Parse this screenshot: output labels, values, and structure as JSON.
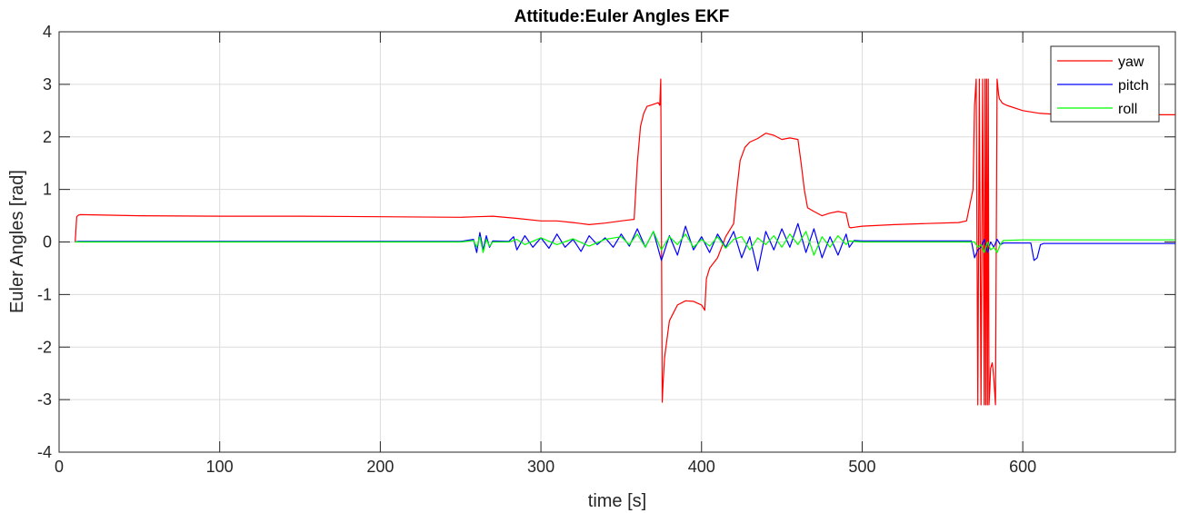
{
  "chart_data": {
    "type": "line",
    "title": "Attitude:Euler Angles EKF",
    "xlabel": "time [s]",
    "ylabel": "Euler Angles [rad]",
    "xlim": [
      0,
      695
    ],
    "ylim": [
      -4,
      4
    ],
    "xticks": [
      0,
      100,
      200,
      300,
      400,
      500,
      600
    ],
    "yticks": [
      -4,
      -3,
      -2,
      -1,
      0,
      1,
      2,
      3,
      4
    ],
    "grid": true,
    "legend_position": "top-right",
    "series": [
      {
        "name": "yaw",
        "color": "#ff0000",
        "x": [
          10,
          11,
          12,
          13,
          50,
          100,
          150,
          200,
          250,
          260,
          270,
          285,
          300,
          310,
          320,
          330,
          340,
          350,
          355,
          358,
          360,
          362,
          364,
          366,
          370,
          373,
          374,
          374.6,
          375,
          375.5,
          376,
          377,
          380,
          385,
          390,
          395,
          400,
          401,
          402,
          403,
          405,
          410,
          415,
          420,
          422,
          424,
          427,
          430,
          435,
          440,
          445,
          450,
          455,
          460,
          462,
          464,
          466,
          470,
          475,
          480,
          485,
          490,
          491,
          492,
          493,
          495,
          500,
          520,
          540,
          560,
          565,
          569,
          570,
          571,
          572,
          573,
          574,
          575,
          576,
          576.5,
          577,
          577.5,
          578,
          578.5,
          579,
          579.5,
          580,
          581,
          582,
          583,
          584,
          585,
          585.5,
          586,
          586.5,
          587,
          588,
          590,
          600,
          610,
          620,
          640,
          650,
          660,
          680,
          695
        ],
        "y": [
          0,
          0.48,
          0.51,
          0.52,
          0.5,
          0.49,
          0.49,
          0.48,
          0.47,
          0.48,
          0.49,
          0.45,
          0.4,
          0.4,
          0.37,
          0.33,
          0.36,
          0.4,
          0.42,
          0.43,
          1.5,
          2.2,
          2.45,
          2.58,
          2.62,
          2.65,
          2.6,
          3.1,
          0.5,
          -3.05,
          -2.7,
          -2.2,
          -1.5,
          -1.2,
          -1.12,
          -1.13,
          -1.2,
          -1.25,
          -1.3,
          -0.7,
          -0.5,
          -0.3,
          0.1,
          0.35,
          1.0,
          1.55,
          1.8,
          1.9,
          1.97,
          2.07,
          2.03,
          1.95,
          1.98,
          1.95,
          1.5,
          1.0,
          0.65,
          0.58,
          0.5,
          0.55,
          0.58,
          0.55,
          0.4,
          0.28,
          0.27,
          0.28,
          0.3,
          0.33,
          0.35,
          0.37,
          0.4,
          1.0,
          2.6,
          3.1,
          -3.1,
          3.1,
          -3.1,
          3.1,
          -3.1,
          3.1,
          -3.1,
          3.1,
          -3.1,
          3.1,
          -3.1,
          -2.8,
          -2.4,
          -2.3,
          -2.6,
          -3.1,
          3.1,
          2.8,
          2.72,
          2.7,
          2.68,
          2.65,
          2.63,
          2.6,
          2.5,
          2.45,
          2.43,
          2.43,
          2.43,
          2.42,
          2.42,
          2.42
        ]
      },
      {
        "name": "pitch",
        "color": "#0000ff",
        "x": [
          10,
          12,
          50,
          100,
          150,
          200,
          250,
          258,
          260,
          262,
          264,
          266,
          268,
          270,
          280,
          283,
          285,
          290,
          295,
          300,
          305,
          310,
          315,
          320,
          325,
          330,
          335,
          340,
          345,
          350,
          355,
          360,
          365,
          370,
          375,
          380,
          385,
          390,
          395,
          400,
          405,
          410,
          415,
          420,
          425,
          430,
          435,
          440,
          445,
          450,
          455,
          460,
          465,
          470,
          475,
          480,
          485,
          490,
          492,
          495,
          500,
          520,
          540,
          560,
          568,
          570,
          572,
          574,
          576,
          578,
          580,
          582,
          584,
          586,
          588,
          600,
          605,
          607,
          609,
          611,
          613,
          620,
          650,
          695
        ],
        "y": [
          0,
          0.01,
          0.01,
          0.01,
          0.01,
          0.01,
          0.01,
          0.05,
          -0.2,
          0.18,
          -0.15,
          0.12,
          -0.1,
          0.02,
          0.01,
          0.1,
          -0.15,
          0.12,
          -0.1,
          0.08,
          -0.12,
          0.15,
          -0.1,
          0.05,
          -0.18,
          0.12,
          -0.05,
          0.08,
          -0.1,
          0.15,
          -0.08,
          0.25,
          -0.1,
          0.2,
          -0.35,
          0.12,
          -0.25,
          0.3,
          -0.15,
          0.1,
          -0.2,
          0.15,
          -0.1,
          0.2,
          -0.3,
          0.1,
          -0.55,
          0.2,
          -0.15,
          0.25,
          -0.1,
          0.35,
          -0.2,
          0.25,
          -0.3,
          0.1,
          -0.25,
          0.15,
          -0.1,
          0.03,
          0.02,
          0.02,
          0.02,
          0.02,
          0.02,
          -0.3,
          -0.15,
          -0.1,
          0.05,
          -0.2,
          0,
          -0.1,
          0.05,
          -0.05,
          -0.02,
          -0.02,
          -0.02,
          -0.35,
          -0.3,
          -0.05,
          -0.03,
          -0.03,
          -0.03,
          -0.03
        ]
      },
      {
        "name": "roll",
        "color": "#00ff00",
        "x": [
          10,
          12,
          50,
          100,
          150,
          200,
          250,
          258,
          260,
          262,
          264,
          266,
          268,
          270,
          280,
          285,
          290,
          300,
          310,
          320,
          330,
          340,
          350,
          355,
          360,
          365,
          370,
          375,
          380,
          385,
          390,
          395,
          400,
          405,
          410,
          415,
          420,
          425,
          430,
          435,
          440,
          445,
          450,
          455,
          460,
          465,
          470,
          475,
          480,
          485,
          490,
          492,
          495,
          500,
          550,
          568,
          570,
          572,
          574,
          576,
          578,
          580,
          582,
          584,
          586,
          588,
          600,
          650,
          695
        ],
        "y": [
          0,
          0,
          0,
          0,
          0,
          0,
          0,
          0.03,
          -0.1,
          0.1,
          -0.2,
          0.05,
          -0.08,
          0,
          0,
          0.05,
          -0.05,
          0.08,
          -0.05,
          0.06,
          -0.08,
          0.05,
          0.1,
          -0.05,
          0.15,
          -0.1,
          0.2,
          -0.15,
          0.1,
          -0.05,
          0.15,
          -0.1,
          0.05,
          -0.08,
          0.1,
          -0.12,
          0.05,
          0.1,
          -0.15,
          0.08,
          -0.05,
          0.12,
          -0.1,
          0.15,
          -0.05,
          0.2,
          -0.25,
          0.1,
          -0.1,
          0.12,
          -0.05,
          0.02,
          0.01,
          0,
          0,
          0,
          0,
          -0.1,
          -0.05,
          -0.2,
          0,
          -0.15,
          -0.1,
          -0.2,
          -0.05,
          0.03,
          0.04,
          0.04,
          0.04
        ]
      }
    ]
  }
}
